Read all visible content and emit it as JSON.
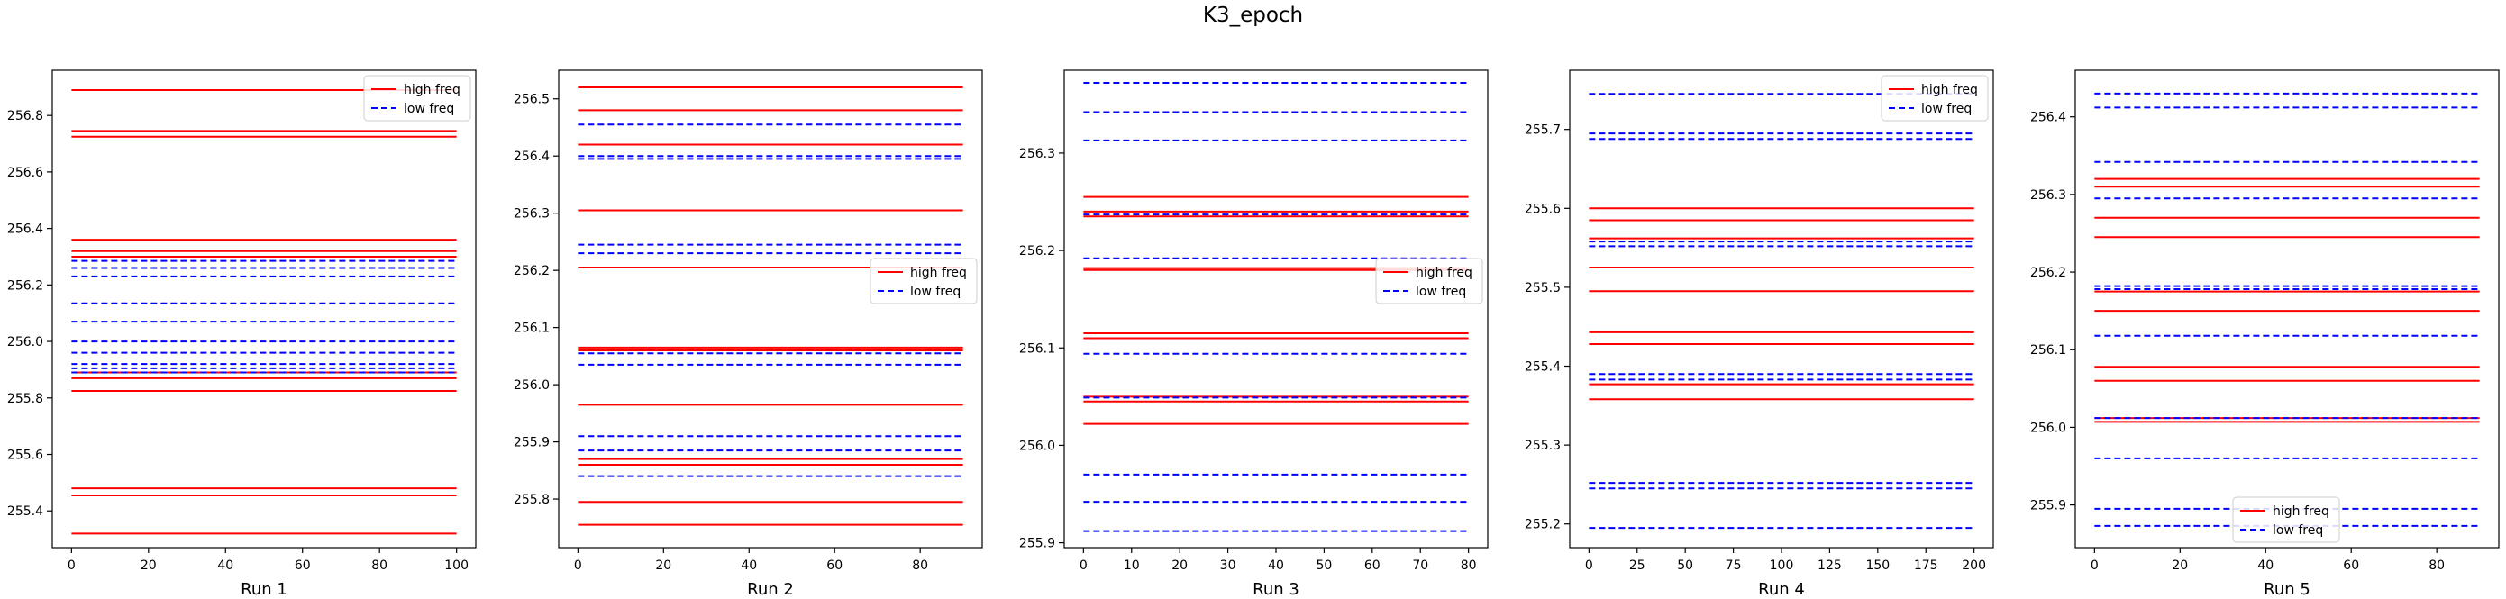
{
  "figure": {
    "title": "K3_epoch"
  },
  "colors": {
    "high": "#ff0000",
    "low": "#0000ff",
    "axis": "#000000",
    "background": "#ffffff"
  },
  "chart_data": [
    {
      "type": "line",
      "xlabel": "Run 1",
      "xlim": [
        -5,
        105
      ],
      "ylim": [
        255.27,
        256.96
      ],
      "xticks": [
        0,
        20,
        40,
        60,
        80,
        100
      ],
      "yticks": [
        255.4,
        255.6,
        255.8,
        256.0,
        256.2,
        256.4,
        256.6,
        256.8
      ],
      "x_range": [
        0,
        100
      ],
      "legend": {
        "position": "upper right",
        "entries": [
          "high freq",
          "low freq"
        ]
      },
      "series": [
        {
          "name": "high freq",
          "style": "solid",
          "levels": [
            256.89,
            256.745,
            256.725,
            256.36,
            256.32,
            256.3,
            255.89,
            255.87,
            255.825,
            255.48,
            255.455,
            255.32
          ]
        },
        {
          "name": "low freq",
          "style": "dashed",
          "levels": [
            256.285,
            256.26,
            256.23,
            256.135,
            256.07,
            256.0,
            255.96,
            255.92,
            255.905,
            255.89
          ]
        }
      ]
    },
    {
      "type": "line",
      "xlabel": "Run 2",
      "xlim": [
        -4.5,
        94.5
      ],
      "ylim": [
        255.715,
        256.55
      ],
      "xticks": [
        0,
        20,
        40,
        60,
        80
      ],
      "yticks": [
        255.8,
        255.9,
        256.0,
        256.1,
        256.2,
        256.3,
        256.4,
        256.5
      ],
      "x_range": [
        0,
        90
      ],
      "legend": {
        "position": "center right",
        "entries": [
          "high freq",
          "low freq"
        ]
      },
      "series": [
        {
          "name": "high freq",
          "style": "solid",
          "levels": [
            256.52,
            256.48,
            256.42,
            256.305,
            256.205,
            256.065,
            256.06,
            255.965,
            255.87,
            255.86,
            255.795,
            255.755
          ]
        },
        {
          "name": "low freq",
          "style": "dashed",
          "levels": [
            256.455,
            256.4,
            256.395,
            256.245,
            256.23,
            256.055,
            256.035,
            255.91,
            255.885,
            255.84
          ]
        }
      ]
    },
    {
      "type": "line",
      "xlabel": "Run 3",
      "xlim": [
        -4,
        84
      ],
      "ylim": [
        255.895,
        256.385
      ],
      "xticks": [
        0,
        10,
        20,
        30,
        40,
        50,
        60,
        70,
        80
      ],
      "yticks": [
        255.9,
        256.0,
        256.1,
        256.2,
        256.3
      ],
      "x_range": [
        0,
        80
      ],
      "legend": {
        "position": "center right",
        "entries": [
          "high freq",
          "low freq"
        ]
      },
      "series": [
        {
          "name": "high freq",
          "style": "solid",
          "levels": [
            256.255,
            256.24,
            256.235,
            256.182,
            256.18,
            256.115,
            256.11,
            256.05,
            256.045,
            256.022
          ]
        },
        {
          "name": "low freq",
          "style": "dashed",
          "levels": [
            256.372,
            256.342,
            256.313,
            256.237,
            256.192,
            256.094,
            256.049,
            255.97,
            255.942,
            255.912
          ]
        }
      ]
    },
    {
      "type": "line",
      "xlabel": "Run 4",
      "xlim": [
        -10,
        210
      ],
      "ylim": [
        255.17,
        255.775
      ],
      "xticks": [
        0,
        25,
        50,
        75,
        100,
        125,
        150,
        175,
        200
      ],
      "yticks": [
        255.2,
        255.3,
        255.4,
        255.5,
        255.6,
        255.7
      ],
      "x_range": [
        0,
        200
      ],
      "legend": {
        "position": "upper right",
        "entries": [
          "high freq",
          "low freq"
        ]
      },
      "series": [
        {
          "name": "high freq",
          "style": "solid",
          "levels": [
            255.6,
            255.585,
            255.562,
            255.525,
            255.495,
            255.443,
            255.428,
            255.377,
            255.358
          ]
        },
        {
          "name": "low freq",
          "style": "dashed",
          "levels": [
            255.745,
            255.695,
            255.688,
            255.558,
            255.552,
            255.39,
            255.383,
            255.252,
            255.245,
            255.195
          ]
        }
      ]
    },
    {
      "type": "line",
      "xlabel": "Run 5",
      "xlim": [
        -4.5,
        94.5
      ],
      "ylim": [
        255.845,
        256.46
      ],
      "xticks": [
        0,
        20,
        40,
        60,
        80
      ],
      "yticks": [
        255.9,
        256.0,
        256.1,
        256.2,
        256.3,
        256.4
      ],
      "x_range": [
        0,
        90
      ],
      "legend": {
        "position": "lower center",
        "entries": [
          "high freq",
          "low freq"
        ]
      },
      "series": [
        {
          "name": "high freq",
          "style": "solid",
          "levels": [
            256.32,
            256.31,
            256.27,
            256.245,
            256.175,
            256.15,
            256.078,
            256.06,
            256.012,
            256.007
          ]
        },
        {
          "name": "low freq",
          "style": "dashed",
          "levels": [
            256.43,
            256.412,
            256.342,
            256.295,
            256.182,
            256.178,
            256.118,
            256.012,
            255.96,
            255.895,
            255.873
          ]
        }
      ]
    }
  ]
}
